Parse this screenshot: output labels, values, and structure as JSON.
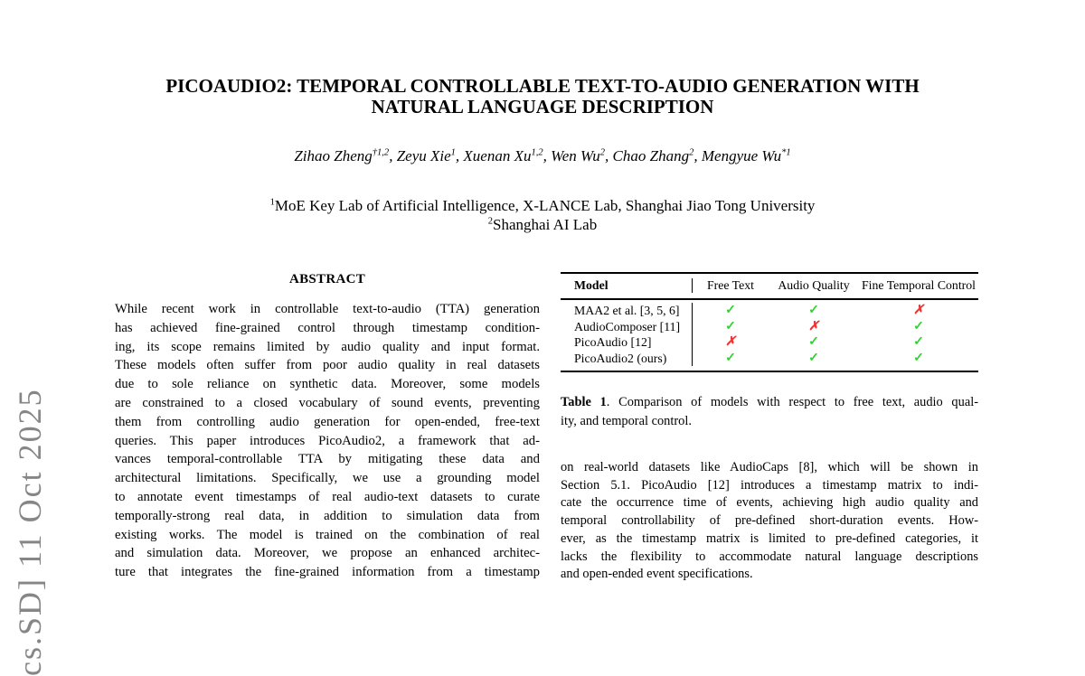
{
  "arxiv_watermark": {
    "text": "cs.SD] 11 Oct 2025",
    "color": "#868686"
  },
  "title": {
    "line1": "PICOAUDIO2: TEMPORAL CONTROLLABLE TEXT-TO-AUDIO GENERATION WITH",
    "line2": "NATURAL LANGUAGE DESCRIPTION"
  },
  "authors": [
    {
      "name": "Zihao Zheng",
      "sup": "†1,2"
    },
    {
      "name": "Zeyu Xie",
      "sup": "1"
    },
    {
      "name": "Xuenan Xu",
      "sup": "1,2"
    },
    {
      "name": "Wen Wu",
      "sup": "2"
    },
    {
      "name": "Chao Zhang",
      "sup": "2"
    },
    {
      "name": "Mengyue Wu",
      "sup": "*1"
    }
  ],
  "affiliations": [
    {
      "sup": "1",
      "text": "MoE Key Lab of Artificial Intelligence, X-LANCE Lab, Shanghai Jiao Tong University"
    },
    {
      "sup": "2",
      "text": "Shanghai AI Lab"
    }
  ],
  "abstract": {
    "heading": "ABSTRACT",
    "lines": [
      "While recent work in controllable text-to-audio (TTA) generation",
      "has achieved fine-grained control through timestamp condition-",
      "ing, its scope remains limited by audio quality and input format.",
      "These models often suffer from poor audio quality in real datasets",
      "due to sole reliance on synthetic data. Moreover, some models",
      "are constrained to a closed vocabulary of sound events, preventing",
      "them from controlling audio generation for open-ended, free-text",
      "queries. This paper introduces PicoAudio2, a framework that ad-",
      "vances temporal-controllable TTA by mitigating these data and",
      "architectural limitations. Specifically, we use a grounding model",
      "to annotate event timestamps of real audio-text datasets to curate",
      "temporally-strong real data, in addition to simulation data from",
      "existing works. The model is trained on the combination of real",
      "and simulation data. Moreover, we propose an enhanced architec-",
      "ture that integrates the fine-grained information from a timestamp"
    ]
  },
  "table1": {
    "header_model": "Model",
    "header_cols": [
      "Free Text",
      "Audio Quality",
      "Fine Temporal Control"
    ],
    "rows": [
      {
        "model": "MAA2 et al. [3, 5, 6]",
        "marks": [
          "check",
          "check",
          "cross"
        ]
      },
      {
        "model": "AudioComposer [11]",
        "marks": [
          "check",
          "cross",
          "check"
        ]
      },
      {
        "model": "PicoAudio [12]",
        "marks": [
          "cross",
          "check",
          "check"
        ]
      },
      {
        "model": "PicoAudio2 (ours)",
        "marks": [
          "check",
          "check",
          "check"
        ]
      }
    ],
    "check_glyph": "✓",
    "cross_glyph": "✗",
    "check_color": "#2fd32f",
    "cross_color": "#f23333"
  },
  "table1_caption": {
    "bold": "Table 1",
    "line1_rest": ". Comparison of models with respect to free text, audio qual-",
    "line2": "ity, and temporal control."
  },
  "body_right": {
    "lines": [
      "on real-world datasets like AudioCaps [8], which will be shown in",
      "Section 5.1. PicoAudio [12] introduces a timestamp matrix to indi-",
      "cate the occurrence time of events, achieving high audio quality and",
      "temporal controllability of pre-defined short-duration events. How-",
      "ever, as the timestamp matrix is limited to pre-defined categories, it",
      "lacks the flexibility to accommodate natural language descriptions",
      "and open-ended event specifications."
    ]
  }
}
